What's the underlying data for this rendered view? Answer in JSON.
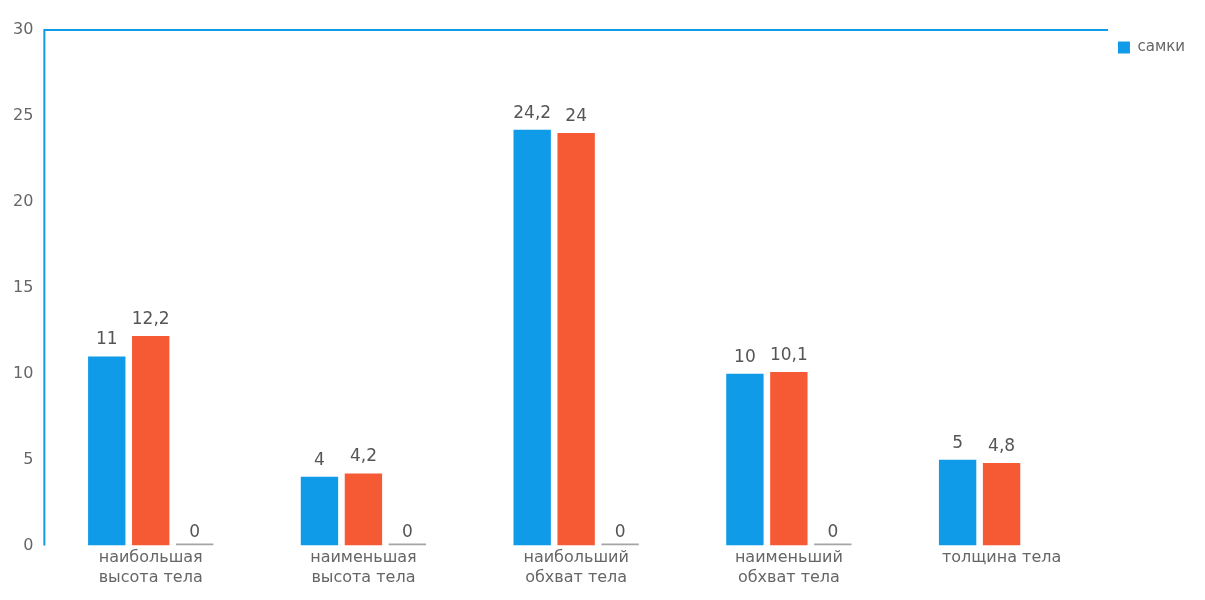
{
  "chart_data": {
    "type": "bar",
    "categories": [
      "наибольшая высота тела",
      "наименьшая высота тела",
      "наибольший обхват тела",
      "наименьший обхват тела",
      "толщина тела"
    ],
    "series": [
      {
        "name": "самки",
        "color": "#0f9be8",
        "values": [
          11,
          4,
          24.2,
          10,
          5
        ],
        "value_labels": [
          "11",
          "4",
          "24,2",
          "10",
          "5"
        ]
      },
      {
        "color": "#f55a34",
        "values": [
          12.2,
          4.2,
          24,
          10.1,
          4.8
        ],
        "value_labels": [
          "12,2",
          "4,2",
          "24",
          "10,1",
          "4,8"
        ]
      },
      {
        "color": "#a5a5a5",
        "values": [
          0,
          0,
          0,
          0,
          null
        ],
        "value_labels": [
          "0",
          "0",
          "0",
          "0",
          null
        ]
      }
    ],
    "ylim": [
      0,
      30
    ],
    "yticks": [
      0,
      5,
      10,
      15,
      20,
      25,
      30
    ],
    "grid": false,
    "legend": "right"
  }
}
